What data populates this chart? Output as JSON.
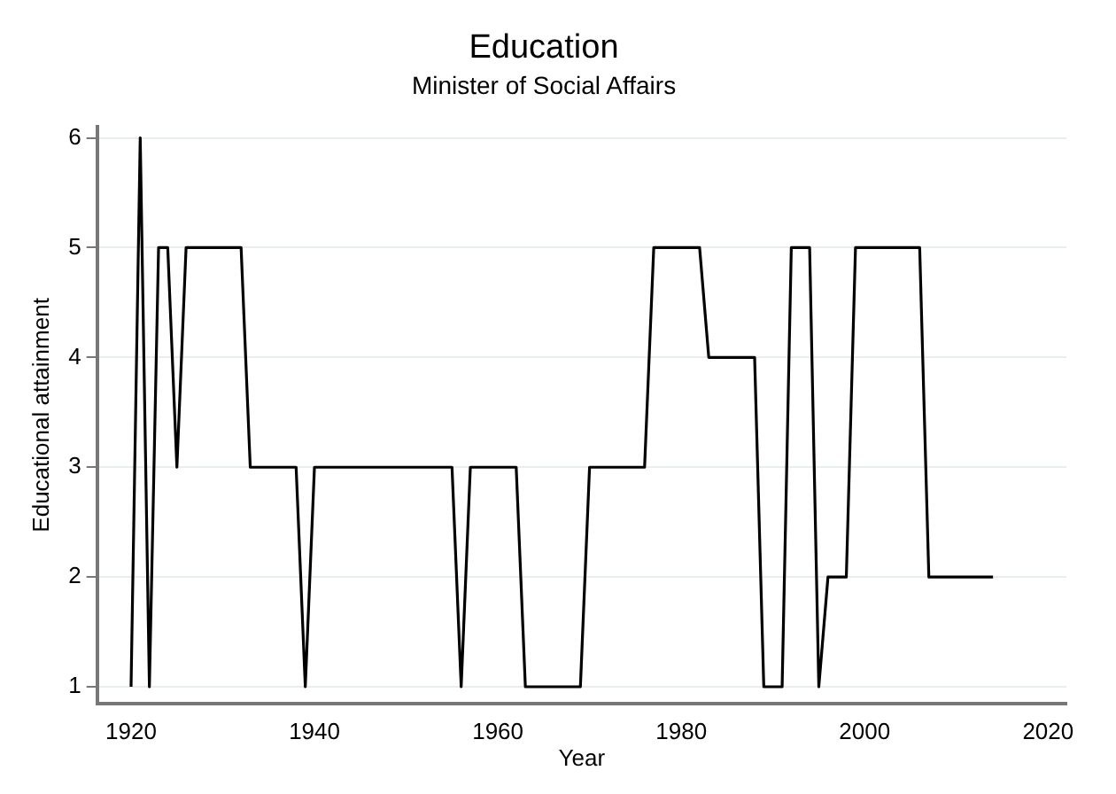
{
  "chart_data": {
    "type": "line",
    "title": "Education",
    "subtitle": "Minister of Social Affairs",
    "xlabel": "Year",
    "ylabel": "Educational attainment",
    "x": [
      1920,
      1921,
      1922,
      1923,
      1924,
      1925,
      1926,
      1932,
      1933,
      1938,
      1939,
      1940,
      1955,
      1956,
      1957,
      1962,
      1963,
      1969,
      1970,
      1976,
      1977,
      1982,
      1983,
      1988,
      1989,
      1991,
      1992,
      1994,
      1995,
      1996,
      1998,
      1999,
      2006,
      2007,
      2014
    ],
    "series": [
      {
        "color": "#000000",
        "values": [
          1,
          6,
          1,
          5,
          5,
          3,
          5,
          5,
          3,
          3,
          1,
          3,
          3,
          1,
          3,
          3,
          1,
          1,
          3,
          3,
          5,
          5,
          4,
          4,
          1,
          1,
          5,
          5,
          1,
          2,
          2,
          5,
          5,
          2,
          2
        ]
      }
    ],
    "xlim": [
      1916.3,
      2022
    ],
    "xticks": [
      1920,
      1940,
      1960,
      1980,
      2000,
      2020
    ],
    "ylim": [
      0.85,
      6.1
    ],
    "yticks": [
      1,
      2,
      3,
      4,
      5,
      6
    ],
    "grid": "y",
    "legend": false,
    "marker": "none",
    "line_style": "solid"
  }
}
